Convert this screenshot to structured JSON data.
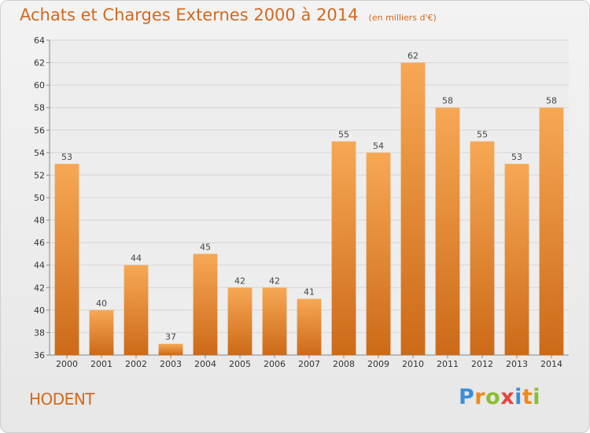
{
  "header": {
    "title": "Achats et Charges Externes 2000 à 2014",
    "unit": "(en milliers d'€)"
  },
  "footer": {
    "city": "HODENT",
    "logo": {
      "letters": [
        "P",
        "r",
        "o",
        "x",
        "i",
        "t",
        "i"
      ],
      "colors": [
        "#3a8fd6",
        "#f08a1c",
        "#8bbd2f",
        "#e8443a",
        "#3a8fd6",
        "#f08a1c",
        "#8bbd2f"
      ]
    }
  },
  "colors": {
    "accent": "#d2691e",
    "bar_top": "#f7a855",
    "bar_bottom": "#cc6a18",
    "grid": "#d6d6d6",
    "plot_bg": "#ededed"
  },
  "chart_data": {
    "type": "bar",
    "categories": [
      "2000",
      "2001",
      "2002",
      "2003",
      "2004",
      "2005",
      "2006",
      "2007",
      "2008",
      "2009",
      "2010",
      "2011",
      "2012",
      "2013",
      "2014"
    ],
    "values": [
      53,
      40,
      44,
      37,
      45,
      42,
      42,
      41,
      55,
      54,
      62,
      58,
      55,
      53,
      58
    ],
    "ylim": [
      36,
      64
    ],
    "yticks": [
      36,
      38,
      40,
      42,
      44,
      46,
      48,
      50,
      52,
      54,
      56,
      58,
      60,
      62,
      64
    ],
    "grid": true
  }
}
